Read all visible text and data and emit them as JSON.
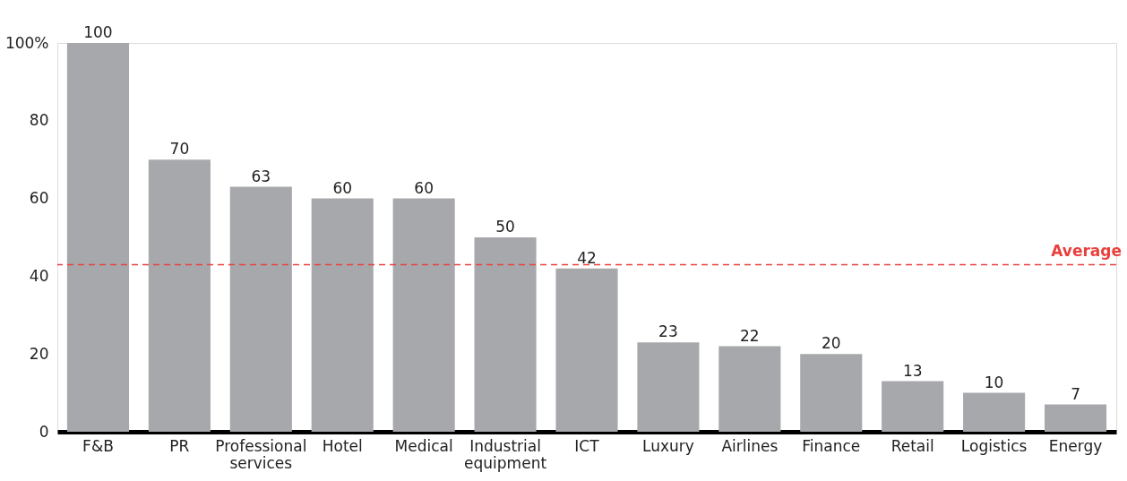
{
  "chart_data": {
    "type": "bar",
    "categories": [
      "F&B",
      "PR",
      "Professional services",
      "Hotel",
      "Medical",
      "Industrial equipment",
      "ICT",
      "Luxury",
      "Airlines",
      "Finance",
      "Retail",
      "Logistics",
      "Energy"
    ],
    "values": [
      100,
      70,
      63,
      60,
      60,
      50,
      42,
      23,
      22,
      20,
      13,
      10,
      7
    ],
    "color": "#a7a8ab",
    "data_labels": true,
    "ylim": [
      0,
      100
    ],
    "yticks": [
      0,
      20,
      40,
      60,
      80,
      {
        "value": 100,
        "label": "100%"
      }
    ],
    "grid": false,
    "ref_lines": [
      {
        "axis": "y",
        "value": 43,
        "label": "Average",
        "color": "#e8403c",
        "line_style": "dashed"
      }
    ]
  }
}
